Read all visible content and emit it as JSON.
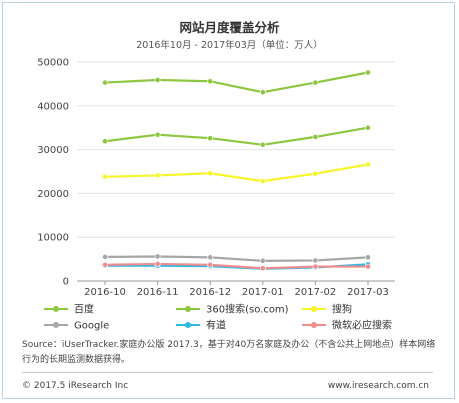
{
  "chart_data": {
    "type": "line",
    "title": "网站月度覆盖分析",
    "subtitle": "2016年10月 - 2017年03月（单位：万人）",
    "categories": [
      "2016-10",
      "2016-11",
      "2016-12",
      "2017-01",
      "2017-02",
      "2017-03"
    ],
    "ylim": [
      0,
      50000
    ],
    "yticks": [
      0,
      10000,
      20000,
      30000,
      40000,
      50000
    ],
    "grid": true,
    "legend_position": "bottom",
    "series": [
      {
        "name": "百度",
        "color": "#8dc63f",
        "values": [
          45300,
          45900,
          45600,
          43100,
          45300,
          47600
        ]
      },
      {
        "name": "360搜索(so.com)",
        "color": "#8dc63f",
        "values": [
          31900,
          33400,
          32600,
          31100,
          32900,
          35000
        ]
      },
      {
        "name": "搜狗",
        "color": "#f5f52a",
        "values": [
          23800,
          24100,
          24600,
          22800,
          24500,
          26600
        ]
      },
      {
        "name": "Google",
        "color": "#a6a6a6",
        "values": [
          5500,
          5600,
          5400,
          4600,
          4700,
          5400
        ]
      },
      {
        "name": "有道",
        "color": "#2eb8e6",
        "values": [
          3500,
          3500,
          3400,
          2800,
          3100,
          3800
        ]
      },
      {
        "name": "微软必应搜索",
        "color": "#f08c8c",
        "values": [
          3700,
          3900,
          3700,
          2900,
          3300,
          3300
        ]
      }
    ]
  },
  "source": "Source：iUserTracker.家庭办公版 2017.3，基于对40万名家庭及办公（不含公共上网地点）样本网络行为的长期监测数据获得。",
  "footer": {
    "copyright": "© 2017.5 iResearch Inc",
    "website": "www.iresearch.com.cn"
  }
}
